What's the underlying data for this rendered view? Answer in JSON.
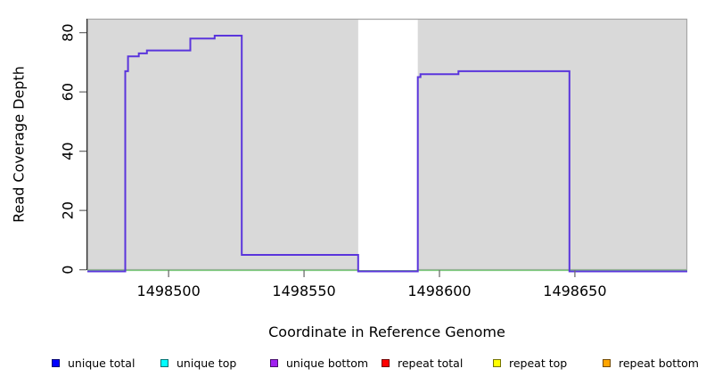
{
  "chart_data": {
    "type": "line",
    "subtype": "step",
    "title": "",
    "xlabel": "Coordinate in Reference Genome",
    "ylabel": "Read Coverage Depth",
    "xlim": [
      1498470,
      1498691.5
    ],
    "ylim": [
      -0.1,
      84.7
    ],
    "x_ticks": [
      1498500,
      1498550,
      1498600,
      1498650
    ],
    "y_ticks": [
      0,
      20,
      40,
      60,
      80
    ],
    "grid": false,
    "legend_position": "bottom",
    "plot_bg_color": "#d9d9d9",
    "plot_bg_border_color": "#a6a6a6",
    "axis_color": "#222222",
    "tick_color": "#6f6f6f",
    "uncovered_gap": {
      "from": 1498570,
      "to": 1498592,
      "color": "#ffffff"
    },
    "series": [
      {
        "name": "coverage step line",
        "color": "#5a35dc",
        "width": 2,
        "points": [
          [
            1498470,
            0
          ],
          [
            1498484,
            0
          ],
          [
            1498484,
            67
          ],
          [
            1498485,
            67
          ],
          [
            1498485,
            72
          ],
          [
            1498489,
            72
          ],
          [
            1498489,
            73
          ],
          [
            1498492,
            73
          ],
          [
            1498492,
            74
          ],
          [
            1498508,
            74
          ],
          [
            1498508,
            78
          ],
          [
            1498517,
            78
          ],
          [
            1498517,
            79
          ],
          [
            1498527,
            79
          ],
          [
            1498527,
            5
          ],
          [
            1498570,
            5
          ],
          [
            1498570,
            0
          ],
          [
            1498592,
            0
          ],
          [
            1498592,
            65
          ],
          [
            1498593,
            65
          ],
          [
            1498593,
            66
          ],
          [
            1498607,
            66
          ],
          [
            1498607,
            67
          ],
          [
            1498648,
            67
          ],
          [
            1498648,
            0
          ],
          [
            1498691.5,
            0
          ]
        ]
      },
      {
        "name": "zero baseline",
        "color": "#7cc87c",
        "width": 1.4,
        "points": [
          [
            1498470,
            0
          ],
          [
            1498691.5,
            0
          ]
        ]
      }
    ],
    "legend": {
      "items": [
        {
          "label": "unique total",
          "color": "#0000ff"
        },
        {
          "label": "unique top",
          "color": "#00ffff"
        },
        {
          "label": "unique bottom",
          "color": "#a020f0"
        },
        {
          "label": "repeat total",
          "color": "#ff0000"
        },
        {
          "label": "repeat top",
          "color": "#ffff00"
        },
        {
          "label": "repeat bottom",
          "color": "#ffa500"
        }
      ]
    }
  }
}
